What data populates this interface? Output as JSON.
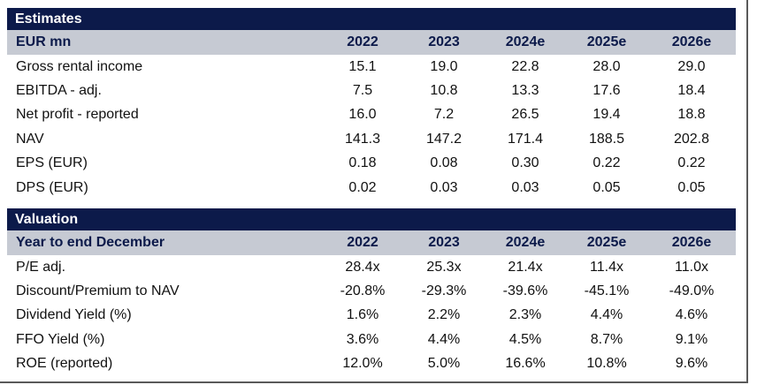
{
  "estimates": {
    "title": "Estimates",
    "header_label": "EUR mn",
    "years": [
      "2022",
      "2023",
      "2024e",
      "2025e",
      "2026e"
    ],
    "rows": [
      {
        "label": "Gross rental income",
        "values": [
          "15.1",
          "19.0",
          "22.8",
          "28.0",
          "29.0"
        ]
      },
      {
        "label": "EBITDA - adj.",
        "values": [
          "7.5",
          "10.8",
          "13.3",
          "17.6",
          "18.4"
        ]
      },
      {
        "label": "Net profit - reported",
        "values": [
          "16.0",
          "7.2",
          "26.5",
          "19.4",
          "18.8"
        ]
      },
      {
        "label": "NAV",
        "values": [
          "141.3",
          "147.2",
          "171.4",
          "188.5",
          "202.8"
        ]
      },
      {
        "label": "EPS (EUR)",
        "values": [
          "0.18",
          "0.08",
          "0.30",
          "0.22",
          "0.22"
        ]
      },
      {
        "label": "DPS (EUR)",
        "values": [
          "0.02",
          "0.03",
          "0.03",
          "0.05",
          "0.05"
        ]
      }
    ]
  },
  "valuation": {
    "title": "Valuation",
    "header_label": "Year to end December",
    "years": [
      "2022",
      "2023",
      "2024e",
      "2025e",
      "2026e"
    ],
    "rows": [
      {
        "label": "P/E adj.",
        "values": [
          "28.4x",
          "25.3x",
          "21.4x",
          "11.4x",
          "11.0x"
        ]
      },
      {
        "label": "Discount/Premium to NAV",
        "values": [
          "-20.8%",
          "-29.3%",
          "-39.6%",
          "-45.1%",
          "-49.0%"
        ]
      },
      {
        "label": "Dividend Yield (%)",
        "values": [
          "1.6%",
          "2.2%",
          "2.3%",
          "4.4%",
          "4.6%"
        ]
      },
      {
        "label": "FFO Yield (%)",
        "values": [
          "3.6%",
          "4.4%",
          "4.5%",
          "8.7%",
          "9.1%"
        ]
      },
      {
        "label": "ROE (reported)",
        "values": [
          "12.0%",
          "5.0%",
          "16.6%",
          "10.8%",
          "9.6%"
        ]
      }
    ]
  },
  "colors": {
    "title_bar": "#0c1a4a",
    "header_bg": "#c6cad3",
    "header_text": "#0c1a4a",
    "body_text": "#111111"
  }
}
